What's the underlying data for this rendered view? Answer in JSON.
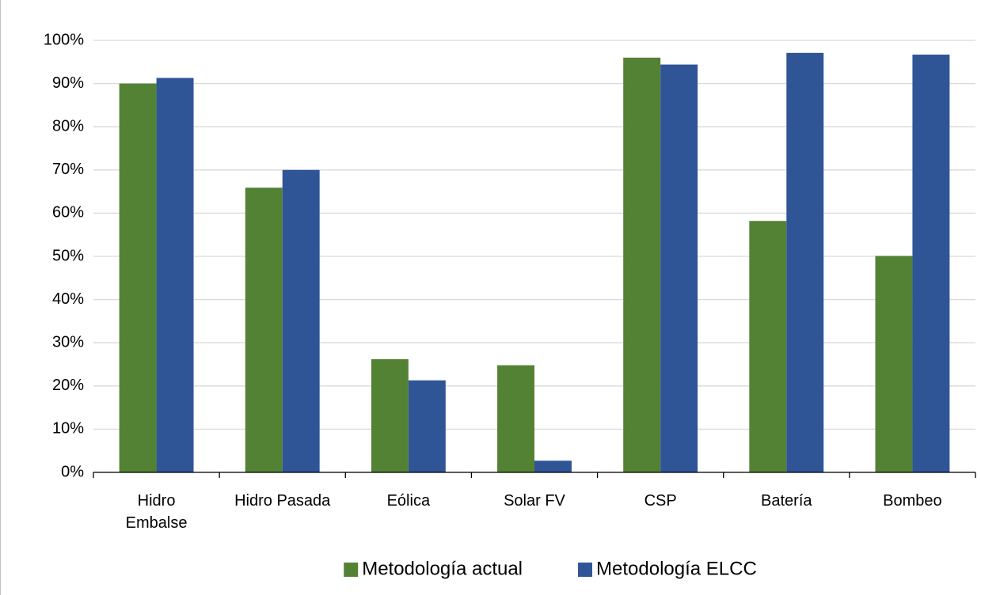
{
  "chart_data": {
    "type": "bar",
    "categories": [
      "Hidro Embalse",
      "Hidro Pasada",
      "Eólica",
      "Solar FV",
      "CSP",
      "Batería",
      "Bombeo"
    ],
    "series": [
      {
        "name": "Metodología actual",
        "color": "#548235",
        "values": [
          90,
          65.9,
          26.2,
          24.8,
          96,
          58.2,
          50.1
        ]
      },
      {
        "name": "Metodología ELCC",
        "color": "#2f5597",
        "values": [
          91.3,
          70,
          21.3,
          2.7,
          94.4,
          97.1,
          96.7
        ]
      }
    ],
    "ylim": [
      0,
      100
    ],
    "yticks": [
      {
        "value": 0,
        "label": "0%"
      },
      {
        "value": 10,
        "label": "10%"
      },
      {
        "value": 20,
        "label": "20%"
      },
      {
        "value": 30,
        "label": "30%"
      },
      {
        "value": 40,
        "label": "40%"
      },
      {
        "value": 50,
        "label": "50%"
      },
      {
        "value": 60,
        "label": "60%"
      },
      {
        "value": 70,
        "label": "70%"
      },
      {
        "value": 80,
        "label": "80%"
      },
      {
        "value": 90,
        "label": "90%"
      },
      {
        "value": 100,
        "label": "100%"
      }
    ],
    "grid": true,
    "legend": "bottom"
  }
}
